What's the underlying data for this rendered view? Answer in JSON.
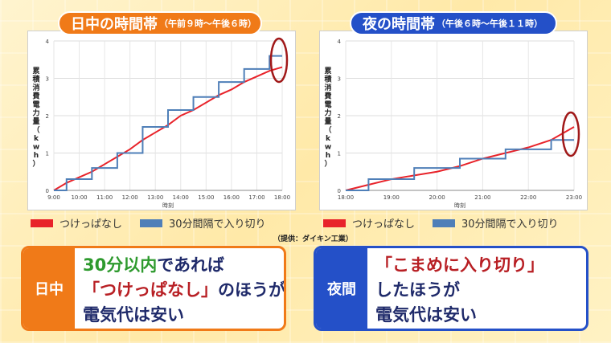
{
  "titles": {
    "day_main": "日中の時間帯",
    "day_sub": "（午前９時〜午後６時）",
    "night_main": "夜の時間帯",
    "night_sub": "（午後６時〜午後１１時）"
  },
  "legend": {
    "series_a": "つけっぱなし",
    "series_b": "30分間隔で入り切り"
  },
  "source": "（提供：ダイキン工業）",
  "colors": {
    "series_a": "#e8232a",
    "series_b": "#4f7fb8",
    "day_accent": "#f07a18",
    "night_accent": "#2450c8",
    "highlight_ring": "#a01818",
    "text_green": "#2e9a2e",
    "text_dark": "#1f2a6a",
    "text_red": "#b81f24"
  },
  "chart_data": [
    {
      "type": "line",
      "ylabel": "累積消費電力量（kwh）",
      "xlabel": "時刻",
      "ylim": [
        0,
        4
      ],
      "yticks": [
        "0",
        "1",
        "2",
        "3",
        "4"
      ],
      "xticks": [
        "9:00",
        "10:00",
        "11:00",
        "12:00",
        "13:00",
        "14:00",
        "15:00",
        "16:00",
        "17:00",
        "18:00"
      ],
      "grid": true,
      "series": [
        {
          "name": "つけっぱなし",
          "x": [
            9.0,
            9.5,
            10.0,
            10.5,
            11.0,
            11.5,
            12.0,
            12.5,
            13.0,
            13.5,
            14.0,
            14.5,
            15.0,
            15.5,
            16.0,
            16.5,
            17.0,
            17.5,
            18.0
          ],
          "y": [
            0.0,
            0.2,
            0.35,
            0.5,
            0.7,
            0.9,
            1.1,
            1.35,
            1.55,
            1.75,
            2.0,
            2.15,
            2.35,
            2.55,
            2.7,
            2.9,
            3.05,
            3.2,
            3.3
          ]
        },
        {
          "name": "30分間隔で入り切り",
          "x": [
            9.0,
            9.5,
            10.0,
            10.5,
            11.0,
            11.5,
            12.0,
            12.5,
            13.0,
            13.5,
            14.0,
            14.5,
            15.0,
            15.5,
            16.0,
            16.5,
            17.0,
            17.5,
            18.0
          ],
          "y": [
            0.0,
            0.3,
            0.3,
            0.6,
            0.6,
            1.0,
            1.0,
            1.7,
            1.7,
            2.15,
            2.15,
            2.5,
            2.5,
            2.9,
            2.9,
            3.25,
            3.25,
            3.6,
            3.6
          ],
          "step": true
        }
      ]
    },
    {
      "type": "line",
      "ylabel": "累積消費電力量（kwh）",
      "xlabel": "時刻",
      "ylim": [
        0,
        4
      ],
      "yticks": [
        "0",
        "1",
        "2",
        "3",
        "4"
      ],
      "xticks": [
        "18:00",
        "19:00",
        "20:00",
        "21:00",
        "22:00",
        "23:00"
      ],
      "grid": true,
      "series": [
        {
          "name": "つけっぱなし",
          "x": [
            18.0,
            18.5,
            19.0,
            19.5,
            20.0,
            20.5,
            21.0,
            21.5,
            22.0,
            22.5,
            23.0
          ],
          "y": [
            0.0,
            0.15,
            0.3,
            0.4,
            0.5,
            0.65,
            0.85,
            1.0,
            1.15,
            1.35,
            1.7
          ]
        },
        {
          "name": "30分間隔で入り切り",
          "x": [
            18.0,
            18.5,
            19.0,
            19.5,
            20.0,
            20.5,
            21.0,
            21.5,
            22.0,
            22.5,
            23.0
          ],
          "y": [
            0.0,
            0.3,
            0.3,
            0.6,
            0.6,
            0.85,
            0.85,
            1.1,
            1.1,
            1.35,
            1.35
          ],
          "step": true
        }
      ]
    }
  ],
  "boxes": {
    "day_label": "日中",
    "day_line1_green": "30分以内",
    "day_line1_rest": "であれば",
    "day_line2_red": "「つけっぱなし」",
    "day_line2_rest": "のほうが",
    "day_line3": "電気代は安い",
    "night_label": "夜間",
    "night_line1_red": "「こまめに入り切り」",
    "night_line2": "したほうが",
    "night_line3": "電気代は安い"
  }
}
